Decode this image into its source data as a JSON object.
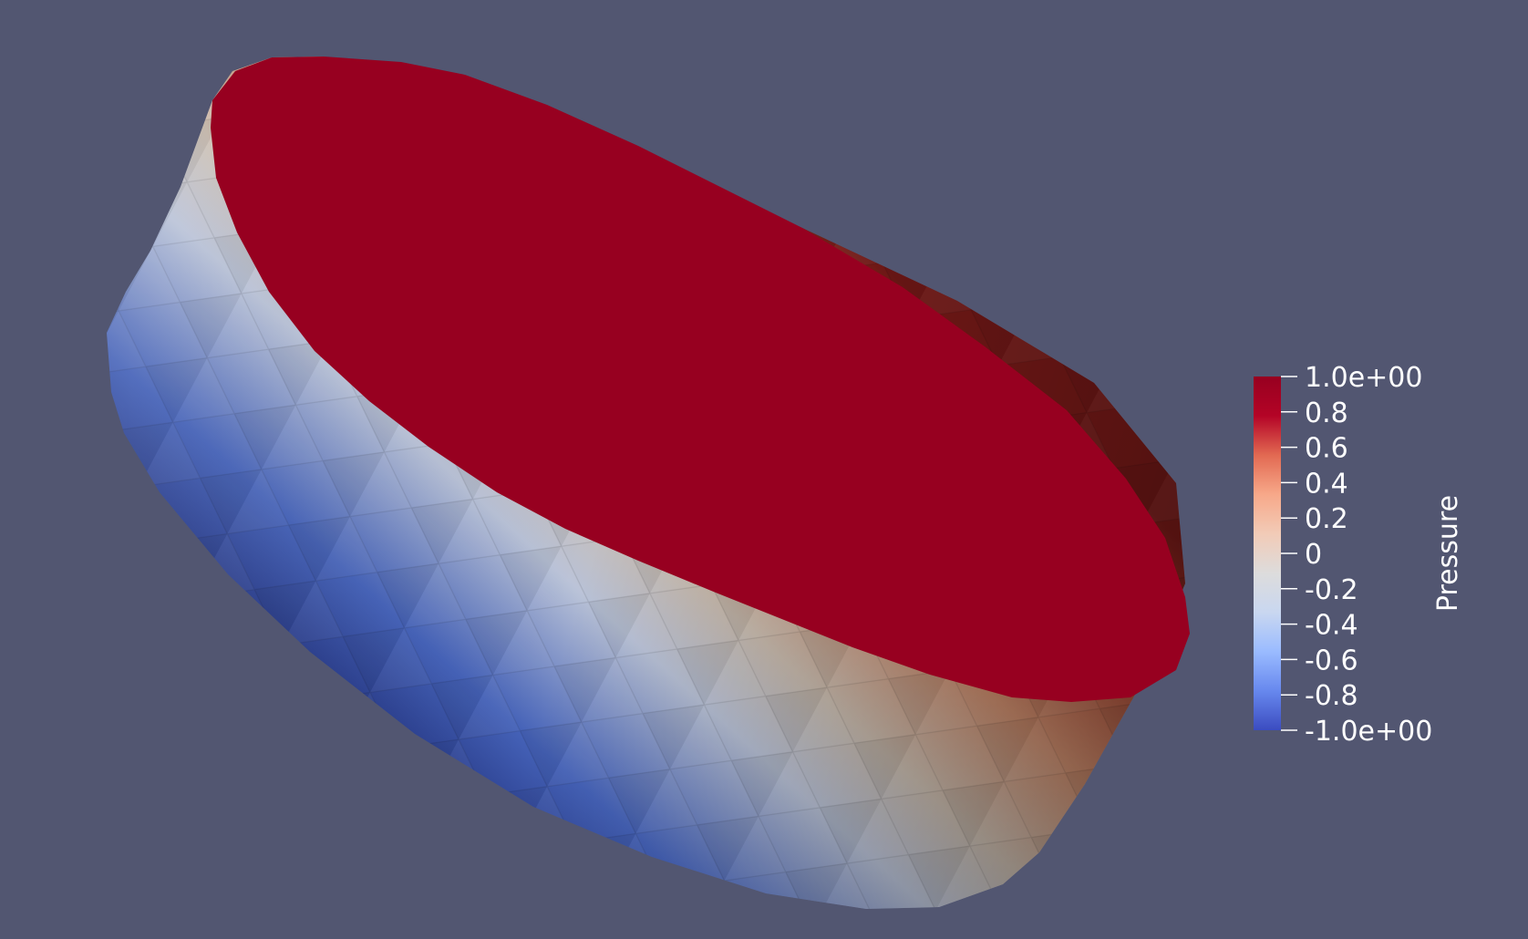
{
  "scalar_bar": {
    "title": "Pressure",
    "labels": [
      "1.0e+00",
      "0.8",
      "0.6",
      "0.4",
      "0.2",
      "0",
      "-0.2",
      "-0.4",
      "-0.6",
      "-0.8",
      "-1.0e+00"
    ],
    "range": [
      -1.0,
      1.0
    ],
    "colormap": "Cool to Warm",
    "color_stops": [
      "#3b4cc0",
      "#6788ee",
      "#9abbff",
      "#c9d7f0",
      "#dddcdc",
      "#f2cbb7",
      "#f7a889",
      "#e26952",
      "#b40426",
      "#970020"
    ]
  },
  "scene": {
    "background": "#525671",
    "object": "cylinder",
    "top_face_color": "#970020"
  }
}
